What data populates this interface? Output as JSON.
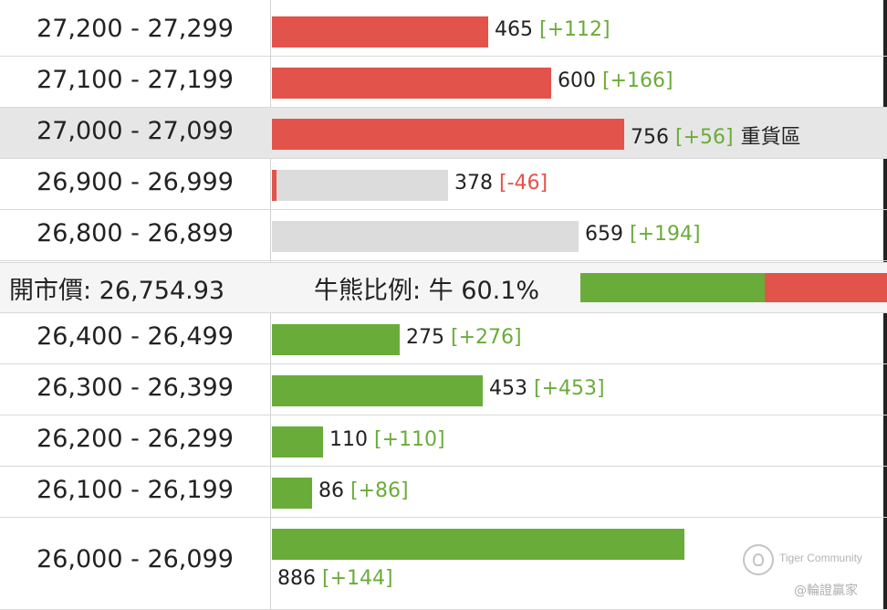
{
  "colors": {
    "bear": "#e2534c",
    "bull": "#6aac3a",
    "neutral": "#dcdcdc",
    "highlight_row": "#e6e6e6"
  },
  "open_row": {
    "open_price_label": "開市價: 26,754.93",
    "ratio_label": "牛熊比例: 牛 60.1%",
    "bull_pct": 60.1
  },
  "watermark": {
    "brand": "Tiger Community",
    "handle": "@輪證贏家"
  },
  "chart_data": {
    "type": "bar",
    "orientation": "horizontal",
    "categories": [
      "27,200 - 27,299",
      "27,100 - 27,199",
      "27,000 - 27,099",
      "26,900 - 26,999",
      "26,800 - 26,899",
      "26,400 - 26,499",
      "26,300 - 26,399",
      "26,200 - 26,299",
      "26,100 - 26,199",
      "26,000 - 26,099"
    ],
    "values": [
      465,
      600,
      756,
      378,
      659,
      275,
      453,
      110,
      86,
      886
    ],
    "changes": [
      "[+112]",
      "[+166]",
      "[+56]",
      "[-46]",
      "[+194]",
      "[+276]",
      "[+453]",
      "[+110]",
      "[+86]",
      "[+144]"
    ],
    "colored_fraction": [
      1,
      1,
      1,
      0.013,
      0,
      1,
      1,
      1,
      1,
      1
    ],
    "series_side": [
      "bear",
      "bear",
      "bear",
      "bear",
      "bear",
      "bull",
      "bull",
      "bull",
      "bull",
      "bull"
    ],
    "tags": [
      "",
      "",
      "重貨區",
      "",
      "",
      "",
      "",
      "",
      "",
      ""
    ],
    "highlight_index": 2,
    "xlim": [
      0,
      886
    ]
  }
}
